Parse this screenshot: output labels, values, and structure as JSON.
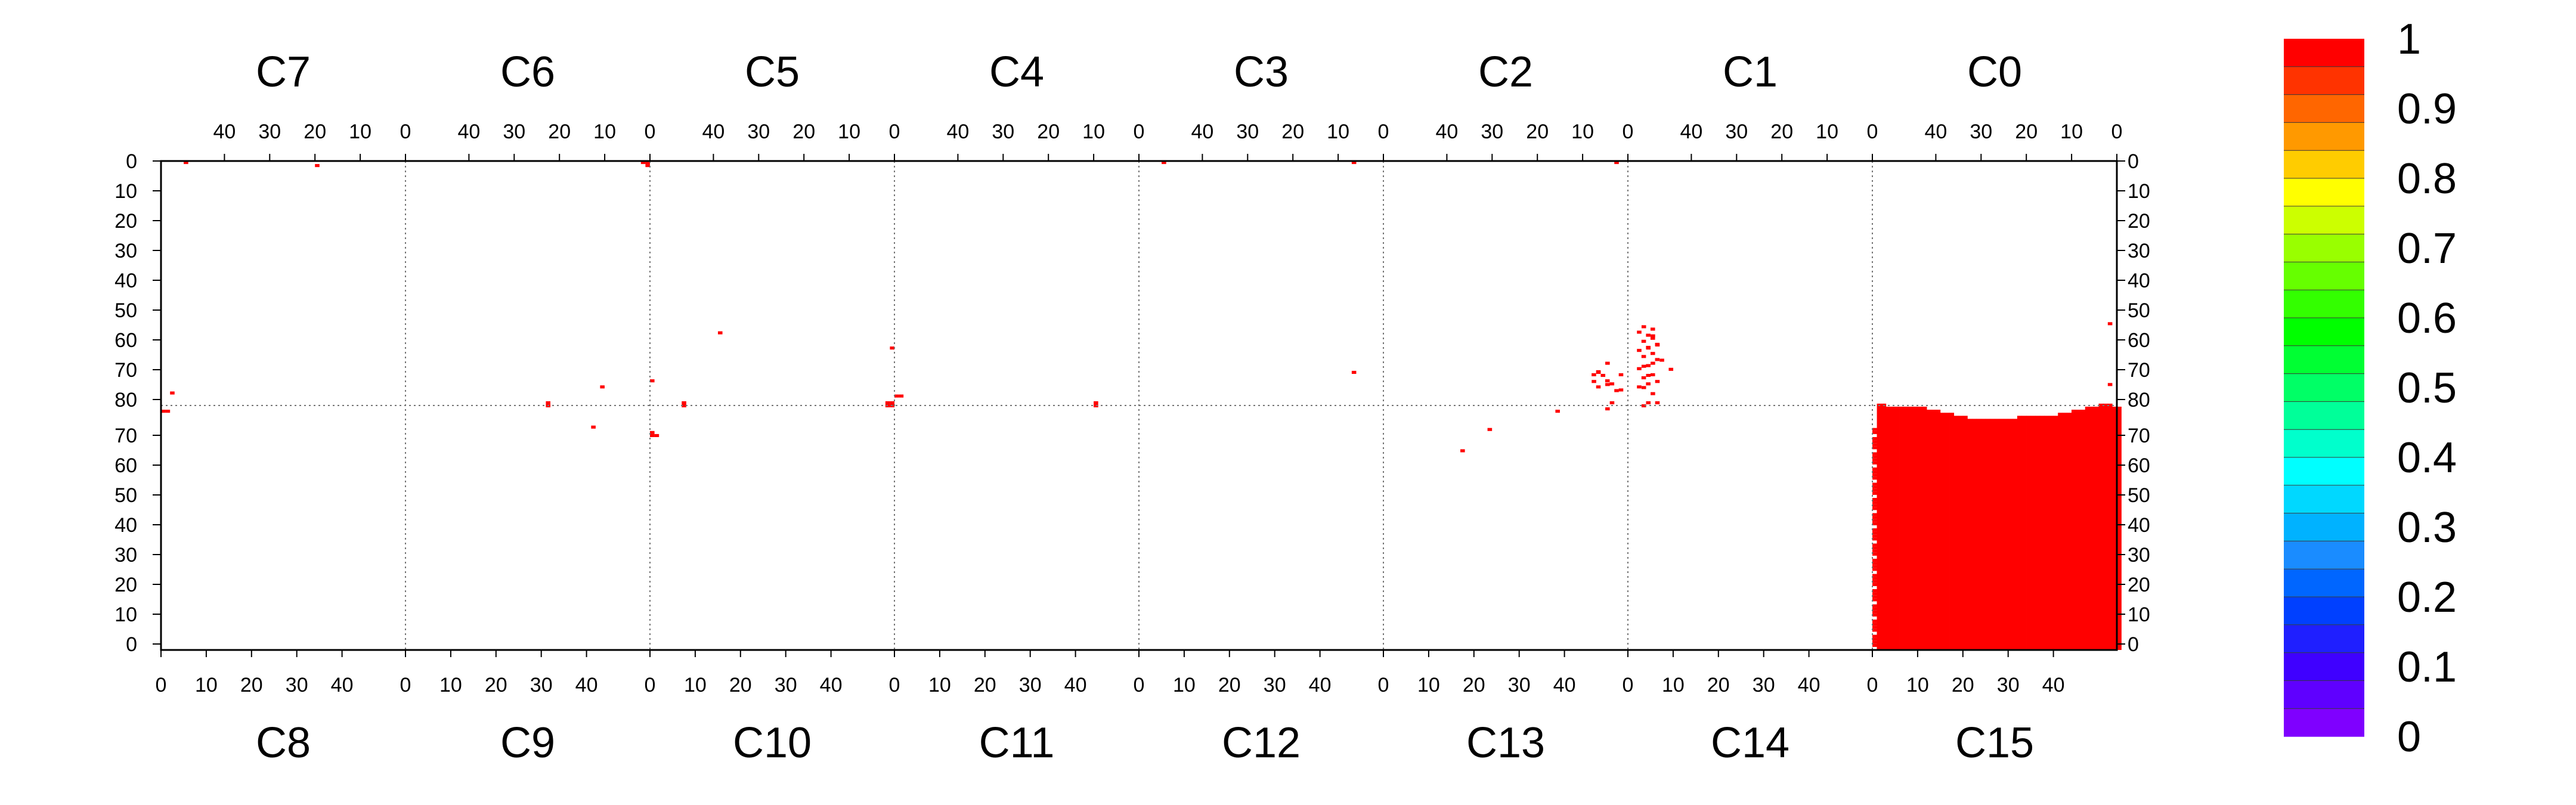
{
  "chart_data": {
    "type": "heatmap",
    "title": "",
    "top_sectors": [
      "C7",
      "C6",
      "C5",
      "C4",
      "C3",
      "C2",
      "C1",
      "C0"
    ],
    "bottom_sectors": [
      "C8",
      "C9",
      "C10",
      "C11",
      "C12",
      "C13",
      "C14",
      "C15"
    ],
    "top_x_ticks": [
      "40",
      "30",
      "20",
      "10",
      "0"
    ],
    "bottom_x_ticks": [
      "0",
      "10",
      "20",
      "30",
      "40"
    ],
    "top_y_ticks": [
      "0",
      "10",
      "20",
      "30",
      "40",
      "50",
      "60",
      "70",
      "80"
    ],
    "bottom_y_ticks": [
      "70",
      "60",
      "50",
      "40",
      "30",
      "20",
      "10",
      "0"
    ],
    "strip_range": [
      0,
      80
    ],
    "sector_x_range": [
      0,
      54
    ],
    "grid": "dotted sector dividers and midline",
    "colorbar": {
      "ticks": [
        "0",
        "0.1",
        "0.2",
        "0.3",
        "0.4",
        "0.5",
        "0.6",
        "0.7",
        "0.8",
        "0.9",
        "1"
      ],
      "range": [
        0,
        1
      ],
      "colors": [
        "#7f00ff",
        "#5f00ff",
        "#3f00ff",
        "#1f1fff",
        "#0040ff",
        "#0066ff",
        "#1a8cff",
        "#00b2ff",
        "#00d8ff",
        "#00ffff",
        "#00ffcc",
        "#00ff99",
        "#00ff66",
        "#00ff33",
        "#00ff00",
        "#33ff00",
        "#66ff00",
        "#99ff00",
        "#ccff00",
        "#ffff00",
        "#ffcc00",
        "#ff9900",
        "#ff6600",
        "#ff3300",
        "#ff0000"
      ]
    },
    "cell_color": "#ff0000",
    "cells": [
      {
        "sector": "C7",
        "x": 48,
        "y": 0,
        "value": 1
      },
      {
        "sector": "C7",
        "x": 19,
        "y": 1,
        "value": 1
      },
      {
        "sector": "C6",
        "x": 0,
        "y": 0,
        "value": 1
      },
      {
        "sector": "C6",
        "x": 1,
        "y": 0,
        "value": 1
      },
      {
        "sector": "C6",
        "x": 0,
        "y": 1,
        "value": 1
      },
      {
        "sector": "C6",
        "x": 22,
        "y": 79,
        "value": 1
      },
      {
        "sector": "C6",
        "x": 22,
        "y": 80,
        "value": 1
      },
      {
        "sector": "C6",
        "x": 12,
        "y": 87,
        "value": 1
      },
      {
        "sector": "C5",
        "x": 0,
        "y": 61,
        "value": 1
      },
      {
        "sector": "C5",
        "x": 38,
        "y": 56,
        "value": 1
      },
      {
        "sector": "C5",
        "x": 0,
        "y": 79,
        "value": 1
      },
      {
        "sector": "C5",
        "x": 1,
        "y": 79,
        "value": 1
      },
      {
        "sector": "C5",
        "x": 0,
        "y": 80,
        "value": 1
      },
      {
        "sector": "C5",
        "x": 1,
        "y": 80,
        "value": 1
      },
      {
        "sector": "C5",
        "x": 46,
        "y": 79,
        "value": 1
      },
      {
        "sector": "C5",
        "x": 46,
        "y": 80,
        "value": 1
      },
      {
        "sector": "C4",
        "x": 9,
        "y": 79,
        "value": 1
      },
      {
        "sector": "C4",
        "x": 9,
        "y": 80,
        "value": 1
      },
      {
        "sector": "C3",
        "x": 48,
        "y": 0,
        "value": 1
      },
      {
        "sector": "C3",
        "x": 6,
        "y": 0,
        "value": 1
      },
      {
        "sector": "C3",
        "x": 6,
        "y": 69,
        "value": 1
      },
      {
        "sector": "C2",
        "x": 2,
        "y": 0,
        "value": 1
      },
      {
        "sector": "C2",
        "x": 4,
        "y": 73,
        "value": 1
      },
      {
        "sector": "C2",
        "x": 3,
        "y": 79,
        "value": 1
      },
      {
        "sector": "C2",
        "x": 5,
        "y": 70,
        "value": 1
      },
      {
        "sector": "C2",
        "x": 4,
        "y": 66,
        "value": 1
      },
      {
        "sector": "C2",
        "x": 2,
        "y": 75,
        "value": 1
      },
      {
        "sector": "C2",
        "x": 6,
        "y": 69,
        "value": 1
      },
      {
        "sector": "C2",
        "x": 4,
        "y": 81,
        "value": 1
      },
      {
        "sector": "C2",
        "x": 7,
        "y": 72,
        "value": 1
      },
      {
        "sector": "C1",
        "x": 50,
        "y": 54,
        "value": 1
      },
      {
        "sector": "C1",
        "x": 48,
        "y": 57,
        "value": 1
      },
      {
        "sector": "C1",
        "x": 47,
        "y": 60,
        "value": 1
      },
      {
        "sector": "C1",
        "x": 49,
        "y": 61,
        "value": 1
      },
      {
        "sector": "C1",
        "x": 46,
        "y": 65,
        "value": 1
      },
      {
        "sector": "C1",
        "x": 48,
        "y": 66,
        "value": 1
      },
      {
        "sector": "C1",
        "x": 50,
        "y": 67,
        "value": 1
      },
      {
        "sector": "C1",
        "x": 44,
        "y": 68,
        "value": 1
      },
      {
        "sector": "C1",
        "x": 49,
        "y": 70,
        "value": 1
      },
      {
        "sector": "C1",
        "x": 47,
        "y": 72,
        "value": 1
      },
      {
        "sector": "C1",
        "x": 50,
        "y": 74,
        "value": 1
      },
      {
        "sector": "C1",
        "x": 48,
        "y": 76,
        "value": 1
      },
      {
        "sector": "C1",
        "x": 47,
        "y": 79,
        "value": 1
      },
      {
        "sector": "C1",
        "x": 49,
        "y": 79,
        "value": 1
      },
      {
        "sector": "C1",
        "x": 50,
        "y": 80,
        "value": 1
      },
      {
        "sector": "C0",
        "x": 1,
        "y": 53,
        "value": 1
      },
      {
        "sector": "C0",
        "x": 1,
        "y": 73,
        "value": 1
      },
      {
        "sector": "C8",
        "x": 2,
        "y": 84,
        "value": 1
      },
      {
        "sector": "C8",
        "x": 0,
        "y": 78,
        "value": 1
      },
      {
        "sector": "C8",
        "x": 1,
        "y": 78,
        "value": 1
      },
      {
        "sector": "C9",
        "x": 43,
        "y": 86,
        "value": 1
      },
      {
        "sector": "C10",
        "x": 0,
        "y": 88,
        "value": 1
      },
      {
        "sector": "C10",
        "x": 0,
        "y": 70,
        "value": 1
      },
      {
        "sector": "C10",
        "x": 1,
        "y": 70,
        "value": 1
      },
      {
        "sector": "C10",
        "x": 0,
        "y": 71,
        "value": 1
      },
      {
        "sector": "C11",
        "x": 0,
        "y": 83,
        "value": 1
      },
      {
        "sector": "C11",
        "x": 1,
        "y": 83,
        "value": 1
      },
      {
        "sector": "C13",
        "x": 17,
        "y": 65,
        "value": 1
      },
      {
        "sector": "C13",
        "x": 23,
        "y": 72,
        "value": 1
      },
      {
        "sector": "C13",
        "x": 38,
        "y": 78,
        "value": 1
      },
      {
        "sector": "C13",
        "x": 47,
        "y": 86,
        "value": 1
      },
      {
        "sector": "C13",
        "x": 52,
        "y": 85,
        "value": 1
      },
      {
        "sector": "C13",
        "x": 50,
        "y": 87,
        "value": 1
      },
      {
        "sector": "C13",
        "x": 49,
        "y": 88,
        "value": 1
      },
      {
        "sector": "C13",
        "x": 52,
        "y": 90,
        "value": 1
      },
      {
        "sector": "C13",
        "x": 47,
        "y": 91,
        "value": 1
      },
      {
        "sector": "C13",
        "x": 46,
        "y": 90,
        "value": 1
      },
      {
        "sector": "C14",
        "x": 2,
        "y": 86,
        "value": 1
      },
      {
        "sector": "C14",
        "x": 4,
        "y": 87,
        "value": 1
      },
      {
        "sector": "C14",
        "x": 3,
        "y": 89,
        "value": 1
      },
      {
        "sector": "C14",
        "x": 5,
        "y": 90,
        "value": 1
      },
      {
        "sector": "C14",
        "x": 2,
        "y": 92,
        "value": 1
      },
      {
        "sector": "C14",
        "x": 4,
        "y": 93,
        "value": 1
      },
      {
        "sector": "C14",
        "x": 6,
        "y": 95,
        "value": 1
      },
      {
        "sector": "C14",
        "x": 3,
        "y": 96,
        "value": 1
      },
      {
        "sector": "C14",
        "x": 5,
        "y": 97,
        "value": 1
      },
      {
        "sector": "C14",
        "x": 2,
        "y": 98,
        "value": 1
      },
      {
        "sector": "C14",
        "x": 4,
        "y": 99,
        "value": 1
      },
      {
        "sector": "C14",
        "x": 6,
        "y": 100,
        "value": 1
      },
      {
        "sector": "C14",
        "x": 3,
        "y": 101,
        "value": 1
      },
      {
        "sector": "C14",
        "x": 5,
        "y": 102,
        "value": 1
      },
      {
        "sector": "C14",
        "x": 4,
        "y": 103,
        "value": 1
      },
      {
        "sector": "C14",
        "x": 2,
        "y": 104,
        "value": 1
      },
      {
        "sector": "C14",
        "x": 5,
        "y": 105,
        "value": 1
      }
    ],
    "block": {
      "sector": "C15",
      "value": 1,
      "x_range": [
        1,
        54
      ],
      "column_tops": [
        80,
        80,
        79,
        79,
        79,
        79,
        79,
        79,
        79,
        79,
        79,
        78,
        78,
        78,
        77,
        77,
        77,
        76,
        76,
        76,
        75,
        75,
        75,
        75,
        75,
        75,
        75,
        75,
        75,
        75,
        75,
        76,
        76,
        76,
        76,
        76,
        76,
        76,
        76,
        76,
        77,
        77,
        77,
        78,
        78,
        78,
        79,
        79,
        79,
        80,
        80,
        80,
        79,
        79
      ],
      "left_edge_x": [
        0,
        1
      ],
      "left_edge_tops": [
        72,
        72
      ]
    }
  }
}
